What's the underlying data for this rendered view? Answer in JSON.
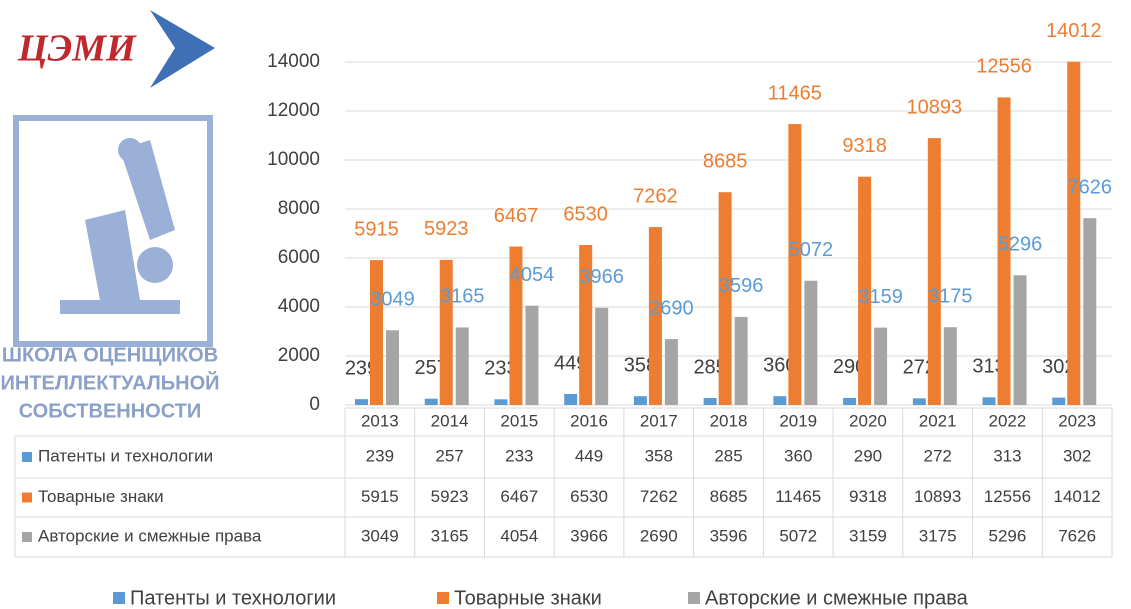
{
  "logo": {
    "brand": "ЦЭМИ",
    "lines": [
      "ШКОЛА ОЦЕНЩИКОВ",
      "ИНТЕЛЛЕКТУАЛЬНОЙ",
      "СОБСТВЕННОСТИ"
    ]
  },
  "chart_data": {
    "type": "bar",
    "categories": [
      "2013",
      "2014",
      "2015",
      "2016",
      "2017",
      "2018",
      "2019",
      "2020",
      "2021",
      "2022",
      "2023"
    ],
    "series": [
      {
        "name": "Патенты и технологии",
        "color": "#5b9bd5",
        "label_color": "#404040",
        "values": [
          239,
          257,
          233,
          449,
          358,
          285,
          360,
          290,
          272,
          313,
          302
        ]
      },
      {
        "name": "Товарные знаки",
        "color": "#ed7d31",
        "label_color": "#ed7d31",
        "values": [
          5915,
          5923,
          6467,
          6530,
          7262,
          8685,
          11465,
          9318,
          10893,
          12556,
          14012
        ]
      },
      {
        "name": "Авторские и смежные права",
        "color": "#a5a5a5",
        "label_color": "#5b9bd5",
        "values": [
          3049,
          3165,
          4054,
          3966,
          2690,
          3596,
          5072,
          3159,
          3175,
          5296,
          7626
        ]
      }
    ],
    "ylim": [
      0,
      14000
    ],
    "yticks": [
      0,
      2000,
      4000,
      6000,
      8000,
      10000,
      12000,
      14000
    ],
    "grid": true,
    "legend": "bottom"
  }
}
